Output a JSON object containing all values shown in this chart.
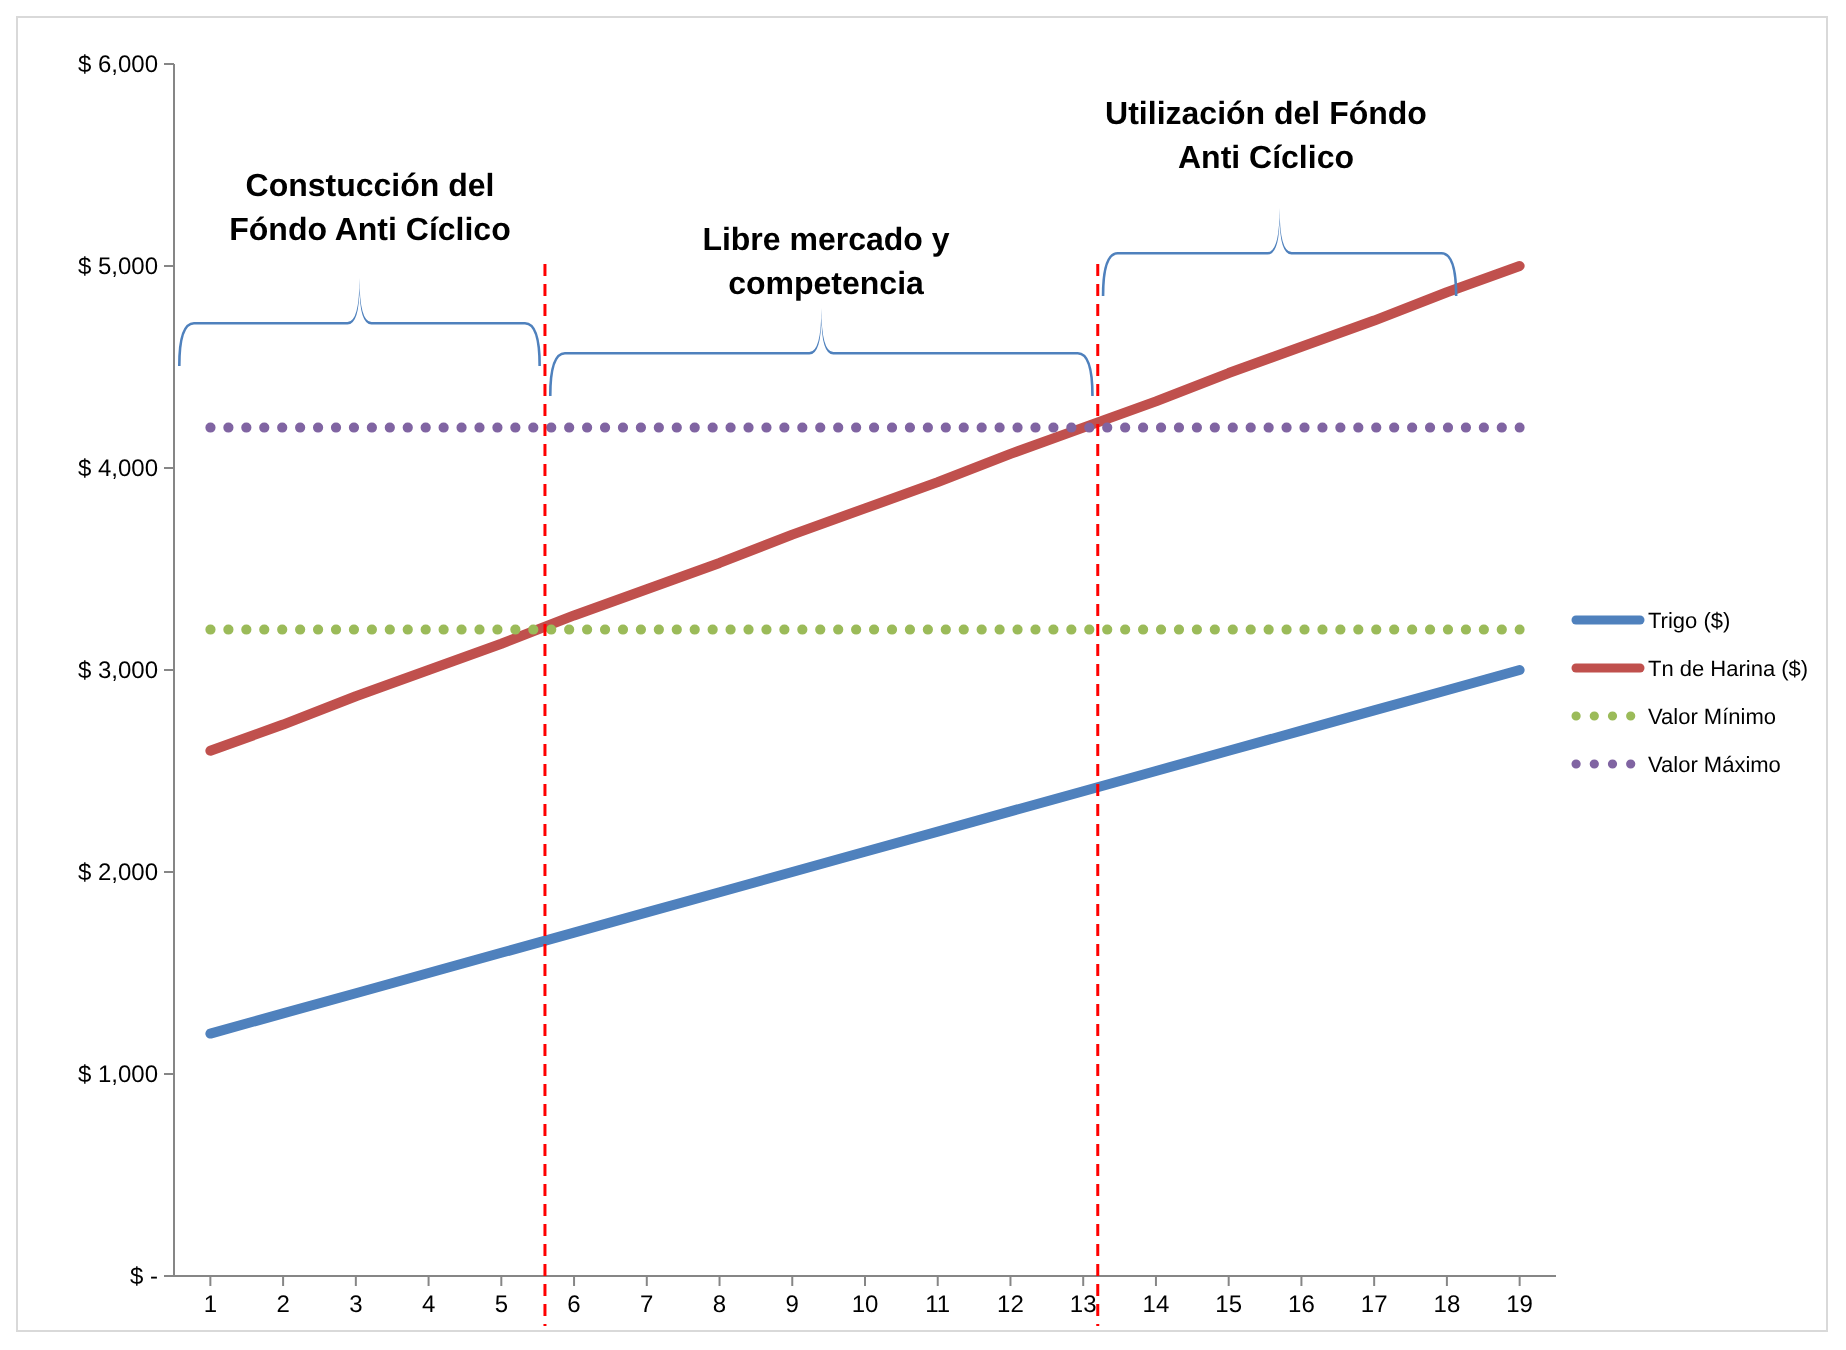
{
  "chart_data": {
    "type": "line",
    "x": [
      1,
      2,
      3,
      4,
      5,
      6,
      7,
      8,
      9,
      10,
      11,
      12,
      13,
      14,
      15,
      16,
      17,
      18,
      19
    ],
    "xlim": [
      0.5,
      19.5
    ],
    "xticks": [
      1,
      2,
      3,
      4,
      5,
      6,
      7,
      8,
      9,
      10,
      11,
      12,
      13,
      14,
      15,
      16,
      17,
      18,
      19
    ],
    "ylim": [
      0,
      6000
    ],
    "yticks": [
      {
        "value": 0,
        "label": "$ -"
      },
      {
        "value": 1000,
        "label": "$ 1,000"
      },
      {
        "value": 2000,
        "label": "$ 2,000"
      },
      {
        "value": 3000,
        "label": "$ 3,000"
      },
      {
        "value": 4000,
        "label": "$ 4,000"
      },
      {
        "value": 5000,
        "label": "$ 5,000"
      },
      {
        "value": 6000,
        "label": "$ 6,000"
      }
    ],
    "series": [
      {
        "name": "Trigo ($)",
        "color": "#4f81bd",
        "line_style": "solid",
        "values": [
          1200,
          1300,
          1400,
          1500,
          1600,
          1700,
          1800,
          1900,
          2000,
          2100,
          2200,
          2300,
          2400,
          2500,
          2600,
          2700,
          2800,
          2900,
          3000
        ]
      },
      {
        "name": "Tn de Harina ($)",
        "color": "#c0504d",
        "line_style": "solid",
        "values": [
          2600,
          2730,
          2870,
          3000,
          3130,
          3270,
          3400,
          3530,
          3670,
          3800,
          3930,
          4070,
          4200,
          4330,
          4470,
          4600,
          4730,
          4870,
          5000
        ]
      },
      {
        "name": "Valor Mínimo",
        "color": "#9bbb59",
        "line_style": "dotted",
        "values": [
          3200,
          3200,
          3200,
          3200,
          3200,
          3200,
          3200,
          3200,
          3200,
          3200,
          3200,
          3200,
          3200,
          3200,
          3200,
          3200,
          3200,
          3200,
          3200
        ]
      },
      {
        "name": "Valor Máximo",
        "color": "#8064a2",
        "line_style": "dotted",
        "values": [
          4200,
          4200,
          4200,
          4200,
          4200,
          4200,
          4200,
          4200,
          4200,
          4200,
          4200,
          4200,
          4200,
          4200,
          4200,
          4200,
          4200,
          4200,
          4200
        ]
      }
    ],
    "ref_lines": [
      {
        "axis": "x",
        "value": 5.6,
        "color": "#ff0000",
        "line_style": "dashed"
      },
      {
        "axis": "x",
        "value": 13.2,
        "color": "#ff0000",
        "line_style": "dashed"
      }
    ],
    "annotations": [
      "Constucción del\nFóndo Anti Cíclico",
      "Libre mercado y\ncompetencia",
      "Utilización del Fóndo\nAnti Cíclico"
    ],
    "legend": "right",
    "grid": false,
    "marker": "none"
  }
}
